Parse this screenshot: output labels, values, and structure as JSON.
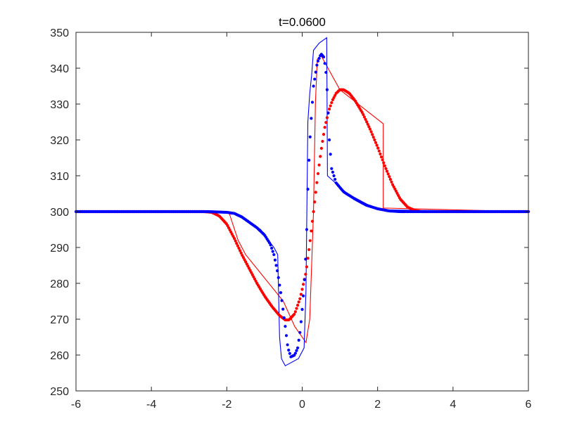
{
  "chart_data": {
    "type": "line",
    "title": "t=0.0600",
    "xlabel": "",
    "ylabel": "",
    "xlim": [
      -6,
      6
    ],
    "ylim": [
      250,
      350
    ],
    "xticks": [
      -6,
      -4,
      -2,
      0,
      2,
      4,
      6
    ],
    "yticks": [
      250,
      260,
      270,
      280,
      290,
      300,
      310,
      320,
      330,
      340,
      350
    ],
    "xtick_labels": [
      "-6",
      "-4",
      "-2",
      "0",
      "2",
      "4",
      "6"
    ],
    "ytick_labels": [
      "250",
      "260",
      "270",
      "280",
      "290",
      "300",
      "310",
      "320",
      "330",
      "340",
      "350"
    ],
    "grid": false,
    "series": [
      {
        "style": "dots",
        "color": "#ff0000",
        "points": [
          [
            -6,
            300
          ],
          [
            -3,
            300
          ],
          [
            -2.6,
            300
          ],
          [
            -2.4,
            299.8
          ],
          [
            -2.2,
            298.8
          ],
          [
            -2.0,
            296.5
          ],
          [
            -1.8,
            292.5
          ],
          [
            -1.6,
            288
          ],
          [
            -1.4,
            284
          ],
          [
            -1.2,
            280
          ],
          [
            -1.0,
            276.5
          ],
          [
            -0.8,
            273.5
          ],
          [
            -0.6,
            271
          ],
          [
            -0.45,
            269.8
          ],
          [
            -0.35,
            269.8
          ],
          [
            -0.2,
            271.5
          ],
          [
            -0.05,
            276
          ],
          [
            0.1,
            283
          ],
          [
            0.2,
            291
          ],
          [
            0.3,
            300
          ],
          [
            0.4,
            309
          ],
          [
            0.5,
            317
          ],
          [
            0.6,
            323.5
          ],
          [
            0.7,
            328
          ],
          [
            0.8,
            331
          ],
          [
            0.9,
            333
          ],
          [
            1.0,
            334
          ],
          [
            1.1,
            334
          ],
          [
            1.25,
            333
          ],
          [
            1.4,
            331
          ],
          [
            1.6,
            327.5
          ],
          [
            1.8,
            323
          ],
          [
            2.0,
            318
          ],
          [
            2.2,
            312.5
          ],
          [
            2.4,
            307.5
          ],
          [
            2.6,
            303.5
          ],
          [
            2.8,
            301.2
          ],
          [
            3.0,
            300.3
          ],
          [
            3.2,
            300
          ],
          [
            6,
            300
          ]
        ]
      },
      {
        "style": "dots",
        "color": "#0000ff",
        "points": [
          [
            -6,
            300
          ],
          [
            -2.5,
            300
          ],
          [
            -2.0,
            299.8
          ],
          [
            -1.8,
            299.5
          ],
          [
            -1.6,
            298.5
          ],
          [
            -1.4,
            297
          ],
          [
            -1.2,
            295.5
          ],
          [
            -1.0,
            293.5
          ],
          [
            -0.85,
            291
          ],
          [
            -0.75,
            288
          ],
          [
            -0.65,
            283
          ],
          [
            -0.55,
            276
          ],
          [
            -0.45,
            268
          ],
          [
            -0.38,
            262
          ],
          [
            -0.3,
            259.5
          ],
          [
            -0.2,
            260
          ],
          [
            -0.12,
            262
          ],
          [
            -0.05,
            267
          ],
          [
            0.02,
            275
          ],
          [
            0.08,
            284
          ],
          [
            0.12,
            295
          ],
          [
            0.16,
            310
          ],
          [
            0.22,
            323
          ],
          [
            0.3,
            335
          ],
          [
            0.4,
            341.5
          ],
          [
            0.5,
            344
          ],
          [
            0.58,
            343
          ],
          [
            0.64,
            338
          ],
          [
            0.68,
            330
          ],
          [
            0.72,
            320
          ],
          [
            0.78,
            312
          ],
          [
            0.9,
            308
          ],
          [
            1.1,
            305.5
          ],
          [
            1.4,
            303.5
          ],
          [
            1.7,
            301.8
          ],
          [
            2.0,
            300.8
          ],
          [
            2.3,
            300.2
          ],
          [
            2.6,
            300
          ],
          [
            6,
            300
          ]
        ]
      },
      {
        "style": "line",
        "color": "#ff0000",
        "points": [
          [
            -6,
            300
          ],
          [
            -1.95,
            300
          ],
          [
            -1.7,
            292
          ],
          [
            -1.5,
            288
          ],
          [
            -0.5,
            275
          ],
          [
            -0.2,
            268
          ],
          [
            0.1,
            263.5
          ],
          [
            0.2,
            270
          ],
          [
            0.3,
            300
          ],
          [
            0.35,
            330
          ],
          [
            0.4,
            342.5
          ],
          [
            0.5,
            343.5
          ],
          [
            1.0,
            334
          ],
          [
            2.15,
            324.5
          ],
          [
            2.15,
            301
          ],
          [
            6,
            300
          ]
        ]
      },
      {
        "style": "line",
        "color": "#0000ff",
        "points": [
          [
            -6,
            300
          ],
          [
            -2.5,
            300
          ],
          [
            -1.8,
            299.5
          ],
          [
            -1.1,
            295
          ],
          [
            -0.75,
            290
          ],
          [
            -0.65,
            288
          ],
          [
            -0.6,
            265
          ],
          [
            -0.55,
            259
          ],
          [
            -0.45,
            257
          ],
          [
            -0.1,
            259
          ],
          [
            0.05,
            262
          ],
          [
            0.1,
            278
          ],
          [
            0.15,
            325
          ],
          [
            0.2,
            333
          ],
          [
            0.25,
            338
          ],
          [
            0.3,
            345
          ],
          [
            0.45,
            347
          ],
          [
            0.65,
            348.5
          ],
          [
            0.67,
            310
          ],
          [
            1.2,
            305
          ],
          [
            2.0,
            300.5
          ],
          [
            6,
            300
          ]
        ]
      }
    ]
  }
}
